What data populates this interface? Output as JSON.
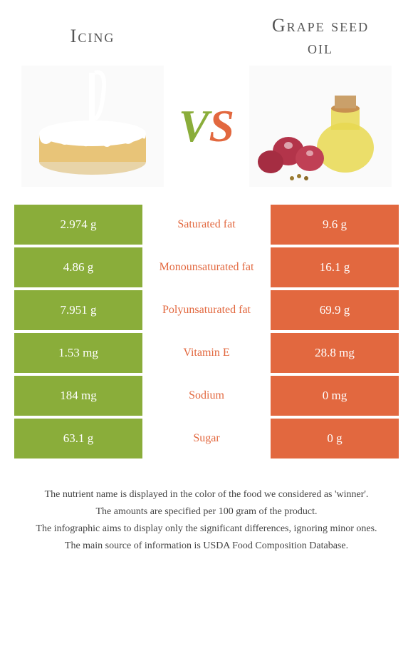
{
  "left_title": "Icing",
  "right_title_line1": "Grape seed",
  "right_title_line2": "oil",
  "vs_v": "V",
  "vs_s": "S",
  "colors": {
    "green": "#8aad3a",
    "orange": "#e2683f",
    "text": "#555"
  },
  "rows": [
    {
      "left": "2.974 g",
      "label": "Saturated fat",
      "right": "9.6 g",
      "winner": "orange"
    },
    {
      "left": "4.86 g",
      "label": "Monounsaturated fat",
      "right": "16.1 g",
      "winner": "orange"
    },
    {
      "left": "7.951 g",
      "label": "Polyunsaturated fat",
      "right": "69.9 g",
      "winner": "orange"
    },
    {
      "left": "1.53 mg",
      "label": "Vitamin E",
      "right": "28.8 mg",
      "winner": "orange"
    },
    {
      "left": "184 mg",
      "label": "Sodium",
      "right": "0 mg",
      "winner": "orange"
    },
    {
      "left": "63.1 g",
      "label": "Sugar",
      "right": "0 g",
      "winner": "orange"
    }
  ],
  "footer": [
    "The nutrient name is displayed in the color of the food we considered as 'winner'.",
    "The amounts are specified per 100 gram of the product.",
    "The infographic aims to display only the significant differences, ignoring minor ones.",
    "The main source of information is USDA Food Composition Database."
  ]
}
